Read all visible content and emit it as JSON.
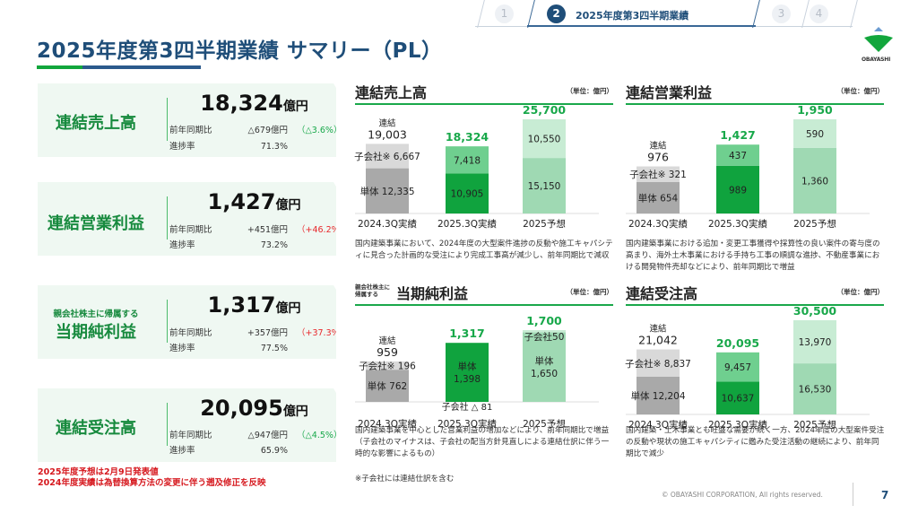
{
  "header": {
    "title": "2025年度第3四半期業績 サマリー（PL）",
    "steps": [
      {
        "num": "1",
        "label": "",
        "active": false
      },
      {
        "num": "2",
        "label": "2025年度第3四半期業績",
        "active": true
      },
      {
        "num": "3",
        "label": "",
        "active": false
      },
      {
        "num": "4",
        "label": "",
        "active": false
      }
    ],
    "logo_text": "OBAYASHI"
  },
  "colors": {
    "brand_green": "#12a63c",
    "brand_blue": "#1f4e79",
    "negative": "#18a84a",
    "positive": "#e8272b",
    "gray_dark": "#a9a9a9",
    "gray_light": "#d9d9d9",
    "green_dark": "#10a33e",
    "green_mid": "#6fcf8f",
    "green_pale_dark": "#9fd9b3",
    "green_pale_light": "#c8ecd4"
  },
  "kpis": [
    {
      "sub": "",
      "title": "連結売上高",
      "value": "18,324",
      "unit": "億円",
      "yoy_label": "前年同期比",
      "yoy_value": "△679億円",
      "yoy_pct": "（△3.6%）",
      "yoy_sign": "neg",
      "progress_label": "進捗率",
      "progress": "71.3%"
    },
    {
      "sub": "",
      "title": "連結営業利益",
      "value": "1,427",
      "unit": "億円",
      "yoy_label": "前年同期比",
      "yoy_value": "+451億円",
      "yoy_pct": "（+46.2%）",
      "yoy_sign": "pos",
      "progress_label": "進捗率",
      "progress": "73.2%"
    },
    {
      "sub": "親会社株主に帰属する",
      "title": "当期純利益",
      "value": "1,317",
      "unit": "億円",
      "yoy_label": "前年同期比",
      "yoy_value": "+357億円",
      "yoy_pct": "（+37.3%）",
      "yoy_sign": "pos",
      "progress_label": "進捗率",
      "progress": "77.5%"
    },
    {
      "sub": "",
      "title": "連結受注高",
      "value": "20,095",
      "unit": "億円",
      "yoy_label": "前年同期比",
      "yoy_value": "△947億円",
      "yoy_pct": "（△4.5%）",
      "yoy_sign": "neg",
      "progress_label": "進捗率",
      "progress": "65.9%"
    }
  ],
  "notes": [
    "2025年度予想は2月9日発表値",
    "2024年度実績は為替換算方法の変更に伴う遡及修正を反映"
  ],
  "footnote": "※子会社には連結仕訳を含む",
  "footer": {
    "copyright": "© OBAYASHI CORPORATION, All rights reserved.",
    "page": "7"
  },
  "chart_data": [
    {
      "type": "bar",
      "stacked": true,
      "title": "連結売上高",
      "unit": "（単位：億円）",
      "categories": [
        "2024.3Q実績",
        "2025.3Q実績",
        "2025予想"
      ],
      "series": [
        {
          "name": "単体",
          "values": [
            12335,
            10905,
            15150
          ]
        },
        {
          "name": "子会社※",
          "values": [
            6667,
            7418,
            10550
          ]
        }
      ],
      "totals": [
        19003,
        18324,
        25700
      ],
      "total_prefix": "連結",
      "bar_labels": [
        [
          "単体 12,335",
          "子会社※ 6,667"
        ],
        [
          "10,905",
          "7,418"
        ],
        [
          "15,150",
          "10,550"
        ]
      ],
      "total_labels": [
        "19,003",
        "18,324",
        "25,700"
      ],
      "ymax": 25700,
      "description": "国内建築事業において、2024年度の大型案件進捗の反動や施工キャパシティに見合った計画的な受注により完成工事高が減少し、前年同期比で減収"
    },
    {
      "type": "bar",
      "stacked": true,
      "title": "連結営業利益",
      "unit": "（単位：億円）",
      "categories": [
        "2024.3Q実績",
        "2025.3Q実績",
        "2025予想"
      ],
      "series": [
        {
          "name": "単体",
          "values": [
            654,
            989,
            1360
          ]
        },
        {
          "name": "子会社※",
          "values": [
            321,
            437,
            590
          ]
        }
      ],
      "totals": [
        976,
        1427,
        1950
      ],
      "total_prefix": "連結",
      "bar_labels": [
        [
          "単体 654",
          "子会社※ 321"
        ],
        [
          "989",
          "437"
        ],
        [
          "1,360",
          "590"
        ]
      ],
      "total_labels": [
        "976",
        "1,427",
        "1,950"
      ],
      "ymax": 1950,
      "description": "国内建築事業における追加・変更工事獲得や採算性の良い案件の寄与度の高まり、海外土木事業における手持ち工事の順調な進捗、不動産事業における開発物件売却などにより、前年同期比で増益"
    },
    {
      "type": "bar",
      "stacked": true,
      "title_small": "親会社株主\nに帰属する",
      "title": "当期純利益",
      "unit": "（単位：億円）",
      "categories": [
        "2024.3Q実績",
        "2025.3Q実績",
        "2025予想"
      ],
      "series": [
        {
          "name": "単体",
          "values": [
            762,
            1398,
            1650
          ]
        },
        {
          "name": "子会社※",
          "values": [
            196,
            -81,
            50
          ]
        }
      ],
      "totals": [
        959,
        1317,
        1700
      ],
      "total_prefix": "連結",
      "bar_labels": [
        [
          "単体 762",
          "子会社※ 196"
        ],
        [
          "単体\n1,398",
          "子会社 △ 81"
        ],
        [
          "単体\n1,650",
          "子会社50"
        ]
      ],
      "total_labels": [
        "959",
        "1,317",
        "1,700"
      ],
      "ymax": 1700,
      "description": "国内建築事業を中心とした営業利益の増加などにより、前年同期比で増益（子会社のマイナスは、子会社の配当方針見直しによる連結仕訳に伴う一時的な影響によるもの）"
    },
    {
      "type": "bar",
      "stacked": true,
      "title": "連結受注高",
      "unit": "（単位：億円）",
      "categories": [
        "2024.3Q実績",
        "2025.3Q実績",
        "2025予想"
      ],
      "series": [
        {
          "name": "単体",
          "values": [
            12204,
            10637,
            16530
          ]
        },
        {
          "name": "子会社※",
          "values": [
            8837,
            9457,
            13970
          ]
        }
      ],
      "totals": [
        21042,
        20095,
        30500
      ],
      "total_prefix": "連結",
      "bar_labels": [
        [
          "単体 12,204",
          "子会社※ 8,837"
        ],
        [
          "10,637",
          "9,457"
        ],
        [
          "16,530",
          "13,970"
        ]
      ],
      "total_labels": [
        "21,042",
        "20,095",
        "30,500"
      ],
      "ymax": 30500,
      "description": "国内建築・土木事業とも旺盛な需要が続く一方、2024年度の大型案件受注の反動や現状の施工キャパシティに鑑みた受注活動の継続により、前年同期比で減少"
    }
  ]
}
